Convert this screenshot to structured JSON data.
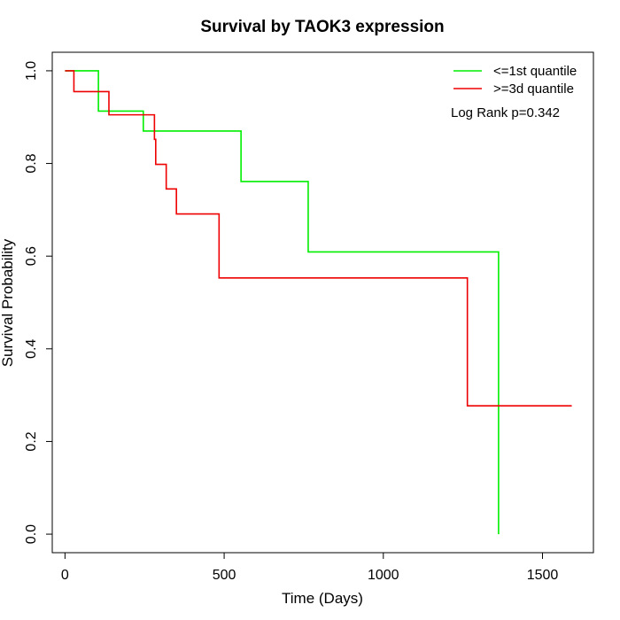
{
  "chart_data": {
    "type": "line",
    "title": "Survival by TAOK3 expression",
    "xlabel": "Time (Days)",
    "ylabel": "Survival Probability",
    "xlim": [
      -40,
      1660
    ],
    "ylim": [
      -0.04,
      1.04
    ],
    "xticks": [
      0,
      500,
      1000,
      1500
    ],
    "yticks": [
      0.0,
      0.2,
      0.4,
      0.6,
      0.8,
      1.0
    ],
    "xtick_labels": [
      "0",
      "500",
      "1000",
      "1500"
    ],
    "ytick_labels": [
      "0.0",
      "0.2",
      "0.4",
      "0.6",
      "0.8",
      "1.0"
    ],
    "legend_position": "top-right",
    "annotation": "Log Rank p=0.342",
    "series": [
      {
        "name": "<=1st quantile",
        "color": "#00ee00",
        "steps": [
          [
            0,
            1.0
          ],
          [
            105,
            0.913
          ],
          [
            246,
            0.87
          ],
          [
            553,
            0.761
          ],
          [
            764,
            0.609
          ],
          [
            1362,
            0.0
          ]
        ]
      },
      {
        "name": ">=3d quantile",
        "color": "#ee0000",
        "steps": [
          [
            0,
            1.0
          ],
          [
            28,
            0.955
          ],
          [
            138,
            0.905
          ],
          [
            281,
            0.852
          ],
          [
            285,
            0.798
          ],
          [
            318,
            0.745
          ],
          [
            350,
            0.691
          ],
          [
            484,
            0.553
          ],
          [
            1264,
            0.277
          ]
        ],
        "end_x": 1592
      }
    ]
  }
}
